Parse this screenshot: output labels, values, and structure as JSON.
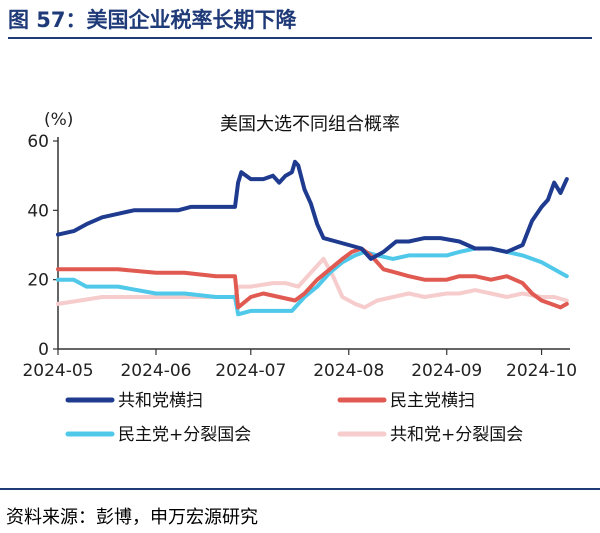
{
  "header": {
    "title": "图 57：美国企业税率长期下降"
  },
  "footer": {
    "source": "资料来源：彭博，申万宏源研究"
  },
  "chart_data": {
    "type": "line",
    "title": "美国大选不同组合概率",
    "ylabel": "(%)",
    "ylim": [
      0,
      60
    ],
    "yticks": [
      0,
      20,
      40,
      60
    ],
    "xlim": [
      "2024-05-01",
      "2024-10-10"
    ],
    "xticks": [
      "2024-05",
      "2024-06",
      "2024-07",
      "2024-08",
      "2024-09",
      "2024-10"
    ],
    "grid": false,
    "legend_position": "bottom",
    "series": [
      {
        "name": "共和党横扫",
        "color": "#1f3b8f",
        "points": [
          [
            "2024-05-01",
            33
          ],
          [
            "2024-05-06",
            34
          ],
          [
            "2024-05-10",
            36
          ],
          [
            "2024-05-15",
            38
          ],
          [
            "2024-05-20",
            39
          ],
          [
            "2024-05-25",
            40
          ],
          [
            "2024-06-01",
            40
          ],
          [
            "2024-06-08",
            40
          ],
          [
            "2024-06-12",
            41
          ],
          [
            "2024-06-20",
            41
          ],
          [
            "2024-06-26",
            41
          ],
          [
            "2024-06-27",
            48
          ],
          [
            "2024-06-28",
            51
          ],
          [
            "2024-07-01",
            49
          ],
          [
            "2024-07-05",
            49
          ],
          [
            "2024-07-08",
            50
          ],
          [
            "2024-07-10",
            48
          ],
          [
            "2024-07-12",
            50
          ],
          [
            "2024-07-14",
            51
          ],
          [
            "2024-07-15",
            54
          ],
          [
            "2024-07-16",
            53
          ],
          [
            "2024-07-18",
            46
          ],
          [
            "2024-07-20",
            42
          ],
          [
            "2024-07-22",
            36
          ],
          [
            "2024-07-24",
            32
          ],
          [
            "2024-07-28",
            31
          ],
          [
            "2024-08-01",
            30
          ],
          [
            "2024-08-05",
            29
          ],
          [
            "2024-08-08",
            26
          ],
          [
            "2024-08-12",
            28
          ],
          [
            "2024-08-16",
            31
          ],
          [
            "2024-08-20",
            31
          ],
          [
            "2024-08-25",
            32
          ],
          [
            "2024-08-30",
            32
          ],
          [
            "2024-09-05",
            31
          ],
          [
            "2024-09-10",
            29
          ],
          [
            "2024-09-15",
            29
          ],
          [
            "2024-09-20",
            28
          ],
          [
            "2024-09-25",
            30
          ],
          [
            "2024-09-28",
            37
          ],
          [
            "2024-10-01",
            41
          ],
          [
            "2024-10-03",
            43
          ],
          [
            "2024-10-05",
            48
          ],
          [
            "2024-10-07",
            45
          ],
          [
            "2024-10-09",
            49
          ]
        ]
      },
      {
        "name": "民主党横扫",
        "color": "#e05a52",
        "points": [
          [
            "2024-05-01",
            23
          ],
          [
            "2024-05-10",
            23
          ],
          [
            "2024-05-20",
            23
          ],
          [
            "2024-06-01",
            22
          ],
          [
            "2024-06-10",
            22
          ],
          [
            "2024-06-20",
            21
          ],
          [
            "2024-06-26",
            21
          ],
          [
            "2024-06-27",
            12
          ],
          [
            "2024-07-01",
            15
          ],
          [
            "2024-07-05",
            16
          ],
          [
            "2024-07-10",
            15
          ],
          [
            "2024-07-15",
            14
          ],
          [
            "2024-07-18",
            16
          ],
          [
            "2024-07-22",
            20
          ],
          [
            "2024-07-26",
            23
          ],
          [
            "2024-07-30",
            26
          ],
          [
            "2024-08-02",
            28
          ],
          [
            "2024-08-05",
            29
          ],
          [
            "2024-08-08",
            27
          ],
          [
            "2024-08-12",
            23
          ],
          [
            "2024-08-16",
            22
          ],
          [
            "2024-08-20",
            21
          ],
          [
            "2024-08-25",
            20
          ],
          [
            "2024-09-01",
            20
          ],
          [
            "2024-09-05",
            21
          ],
          [
            "2024-09-10",
            21
          ],
          [
            "2024-09-15",
            20
          ],
          [
            "2024-09-20",
            21
          ],
          [
            "2024-09-25",
            19
          ],
          [
            "2024-09-28",
            16
          ],
          [
            "2024-10-01",
            14
          ],
          [
            "2024-10-04",
            13
          ],
          [
            "2024-10-07",
            12
          ],
          [
            "2024-10-09",
            13
          ]
        ]
      },
      {
        "name": "民主党+分裂国会",
        "color": "#4fc8ea",
        "points": [
          [
            "2024-05-01",
            20
          ],
          [
            "2024-05-06",
            20
          ],
          [
            "2024-05-10",
            18
          ],
          [
            "2024-05-20",
            18
          ],
          [
            "2024-06-01",
            16
          ],
          [
            "2024-06-10",
            16
          ],
          [
            "2024-06-20",
            15
          ],
          [
            "2024-06-26",
            15
          ],
          [
            "2024-06-27",
            10
          ],
          [
            "2024-07-01",
            11
          ],
          [
            "2024-07-05",
            11
          ],
          [
            "2024-07-10",
            11
          ],
          [
            "2024-07-14",
            11
          ],
          [
            "2024-07-18",
            15
          ],
          [
            "2024-07-22",
            18
          ],
          [
            "2024-07-26",
            22
          ],
          [
            "2024-07-30",
            25
          ],
          [
            "2024-08-03",
            27
          ],
          [
            "2024-08-06",
            28
          ],
          [
            "2024-08-10",
            27
          ],
          [
            "2024-08-15",
            26
          ],
          [
            "2024-08-20",
            27
          ],
          [
            "2024-08-25",
            27
          ],
          [
            "2024-09-01",
            27
          ],
          [
            "2024-09-05",
            28
          ],
          [
            "2024-09-10",
            29
          ],
          [
            "2024-09-15",
            29
          ],
          [
            "2024-09-20",
            28
          ],
          [
            "2024-09-25",
            27
          ],
          [
            "2024-10-01",
            25
          ],
          [
            "2024-10-05",
            23
          ],
          [
            "2024-10-09",
            21
          ]
        ]
      },
      {
        "name": "共和党+分裂国会",
        "color": "#f6cccc",
        "points": [
          [
            "2024-05-01",
            13
          ],
          [
            "2024-05-08",
            14
          ],
          [
            "2024-05-15",
            15
          ],
          [
            "2024-05-25",
            15
          ],
          [
            "2024-06-05",
            15
          ],
          [
            "2024-06-15",
            15
          ],
          [
            "2024-06-26",
            15
          ],
          [
            "2024-06-27",
            18
          ],
          [
            "2024-07-01",
            18
          ],
          [
            "2024-07-08",
            19
          ],
          [
            "2024-07-12",
            19
          ],
          [
            "2024-07-16",
            18
          ],
          [
            "2024-07-20",
            22
          ],
          [
            "2024-07-24",
            26
          ],
          [
            "2024-07-27",
            21
          ],
          [
            "2024-07-30",
            15
          ],
          [
            "2024-08-03",
            13
          ],
          [
            "2024-08-06",
            12
          ],
          [
            "2024-08-10",
            14
          ],
          [
            "2024-08-15",
            15
          ],
          [
            "2024-08-20",
            16
          ],
          [
            "2024-08-25",
            15
          ],
          [
            "2024-09-01",
            16
          ],
          [
            "2024-09-05",
            16
          ],
          [
            "2024-09-10",
            17
          ],
          [
            "2024-09-15",
            16
          ],
          [
            "2024-09-20",
            15
          ],
          [
            "2024-09-25",
            16
          ],
          [
            "2024-10-01",
            15
          ],
          [
            "2024-10-05",
            15
          ],
          [
            "2024-10-09",
            14
          ]
        ]
      }
    ]
  }
}
